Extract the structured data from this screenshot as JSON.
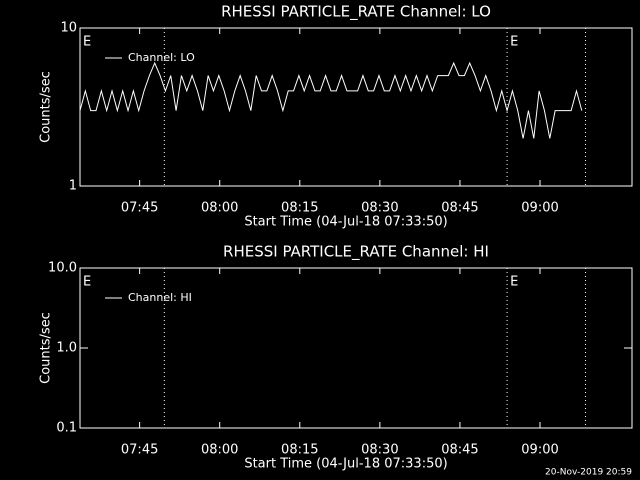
{
  "chart_data": [
    {
      "type": "line",
      "title": "RHESSI PARTICLE_RATE Channel: LO",
      "xlabel": "Start Time (04-Jul-18 07:33:50)",
      "ylabel": "Counts/sec",
      "x": [
        0,
        1,
        2,
        3,
        4,
        5,
        6,
        7,
        8,
        9,
        10,
        11,
        12,
        13,
        14,
        15,
        16,
        17,
        18,
        19,
        20,
        21,
        22,
        23,
        24,
        25,
        26,
        27,
        28,
        29,
        30,
        31,
        32,
        33,
        34,
        35,
        36,
        37,
        38,
        39,
        40,
        41,
        42,
        43,
        44,
        45,
        46,
        47,
        48,
        49,
        50,
        51,
        52,
        53,
        54,
        55,
        56,
        57,
        58,
        59,
        60,
        61,
        62,
        63,
        64,
        65,
        66,
        67,
        68,
        69,
        70,
        71,
        72,
        73,
        74,
        75,
        76,
        77,
        78,
        79,
        80,
        81,
        82,
        83,
        84,
        85,
        86,
        87,
        88,
        89,
        90,
        91,
        92,
        93,
        94
      ],
      "series": [
        {
          "name": "Channel: LO",
          "color": "#ffffff",
          "values": [
            3,
            4,
            3,
            3,
            4,
            3,
            4,
            3,
            4,
            3,
            4,
            3,
            4,
            5,
            6,
            5,
            4,
            5,
            3,
            5,
            4,
            5,
            4,
            3,
            5,
            4,
            5,
            4,
            3,
            4,
            5,
            4,
            3,
            5,
            4,
            4,
            5,
            4,
            3,
            4,
            4,
            5,
            4,
            5,
            4,
            4,
            5,
            4,
            4,
            5,
            4,
            4,
            4,
            5,
            4,
            4,
            5,
            4,
            4,
            5,
            4,
            5,
            4,
            5,
            4,
            5,
            4,
            5,
            5,
            5,
            6,
            5,
            5,
            6,
            5,
            4,
            5,
            4,
            3,
            4,
            3,
            4,
            3,
            2,
            3,
            2,
            4,
            3,
            2,
            3,
            3,
            3,
            3,
            4,
            3
          ]
        }
      ],
      "xlim": [
        0,
        103.4
      ],
      "xticks": [
        {
          "value": 11.17,
          "label": "07:45"
        },
        {
          "value": 26.17,
          "label": "08:00"
        },
        {
          "value": 41.17,
          "label": "08:15"
        },
        {
          "value": 56.17,
          "label": "08:30"
        },
        {
          "value": 71.17,
          "label": "08:45"
        },
        {
          "value": 86.17,
          "label": "09:00"
        }
      ],
      "ylim": [
        1,
        10
      ],
      "yticks": [
        1,
        10
      ],
      "log_y": true,
      "vlines": [
        15.8,
        80,
        94.7
      ],
      "annotations": [
        {
          "text": "E",
          "x": 0
        },
        {
          "text": "E",
          "x": 80
        }
      ],
      "legend": "upper left"
    },
    {
      "type": "line",
      "title": "RHESSI PARTICLE_RATE Channel: HI",
      "xlabel": "Start Time (04-Jul-18 07:33:50)",
      "ylabel": "Counts/sec",
      "x": [],
      "series": [
        {
          "name": "Channel: HI",
          "color": "#ffffff",
          "values": []
        }
      ],
      "xlim": [
        0,
        103.4
      ],
      "xticks": [
        {
          "value": 11.17,
          "label": "07:45"
        },
        {
          "value": 26.17,
          "label": "08:00"
        },
        {
          "value": 41.17,
          "label": "08:15"
        },
        {
          "value": 56.17,
          "label": "08:30"
        },
        {
          "value": 71.17,
          "label": "08:45"
        },
        {
          "value": 86.17,
          "label": "09:00"
        }
      ],
      "ylim": [
        0.1,
        10
      ],
      "yticks": [
        0.1,
        {
          "value": 1,
          "label": "1.0"
        },
        {
          "value": 10,
          "label": "10.0"
        }
      ],
      "log_y": true,
      "vlines": [
        15.8,
        80,
        94.7
      ],
      "annotations": [
        {
          "text": "E",
          "x": 0
        },
        {
          "text": "E",
          "x": 80
        }
      ],
      "legend": "upper left"
    }
  ],
  "footer": "20-Nov-2019 20:59"
}
